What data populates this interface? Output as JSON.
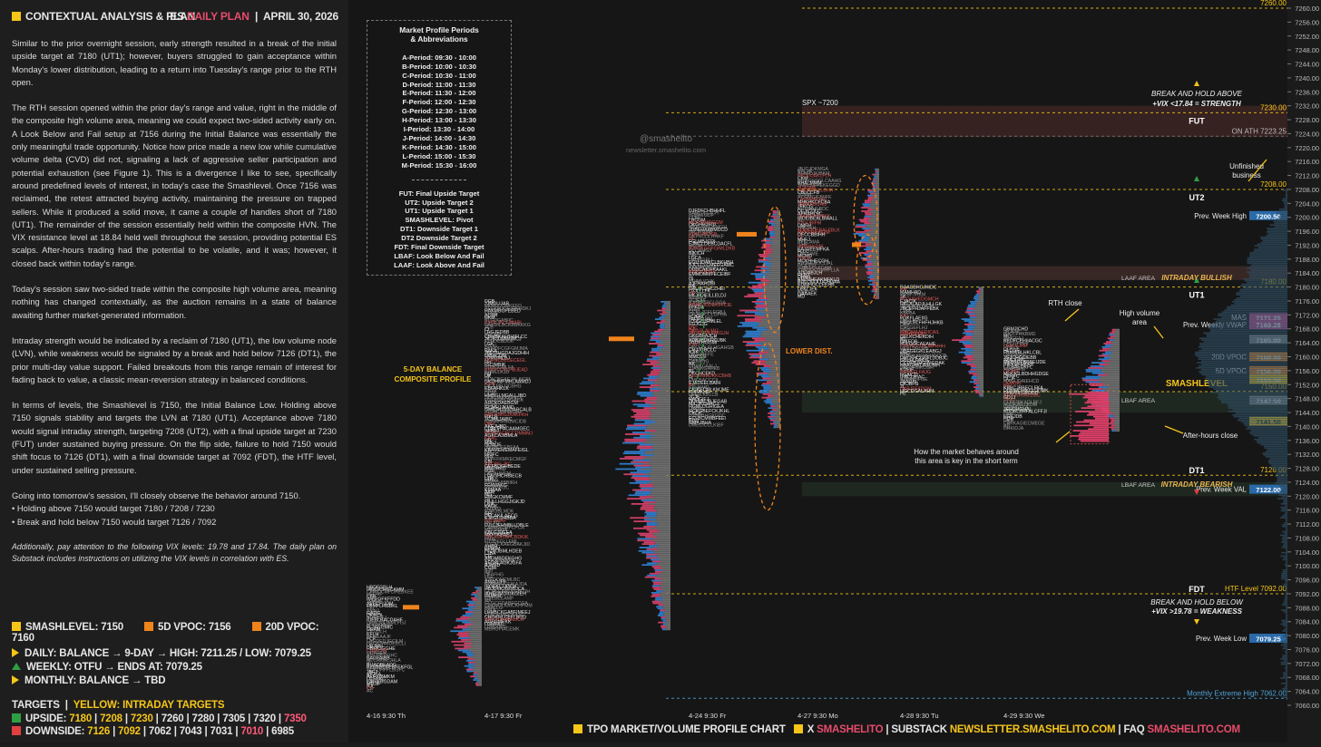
{
  "header": {
    "title": "CONTEXTUAL ANALYSIS & PLAN",
    "symbol": "ES",
    "plan_label": "DAILY PLAN",
    "date": "APRIL 30, 2026"
  },
  "plan_paragraphs": [
    "Similar to the prior overnight session, early strength resulted in a break of the initial upside target at 7180 (UT1); however, buyers struggled to gain acceptance within Monday's lower distribution, leading to a return into Tuesday's range prior to the RTH open.",
    "The RTH session opened within the prior day's range and value, right in the middle of the composite high volume area, meaning we could expect two-sided activity early on. A Look Below and Fail setup at 7156 during the Initial Balance was essentially the only meaningful trade opportunity. Notice how price made a new low while cumulative volume delta (CVD) did not, signaling a lack of aggressive seller participation and potential exhaustion (see Figure 1). This is a divergence I like to see, specifically around predefined levels of interest, in today's case the Smashlevel. Once 7156 was reclaimed, the retest attracted buying activity, maintaining the pressure on trapped sellers. While it produced a solid move, it came a couple of handles short of 7180 (UT1). The remainder of the session essentially held within the composite HVN. The VIX resistance level at 18.84 held well throughout the session, providing potential ES scalps. After-hours trading had the potential to be volatile, and it was; however, it closed back within today's range.",
    "Today's session saw two-sided trade within the composite high volume area, meaning nothing has changed contextually, as the auction remains in a state of balance awaiting further market-generated information.",
    "Intraday strength would be indicated by a reclaim of 7180 (UT1), the low volume node (LVN), while weakness would be signaled by a break and hold below 7126 (DT1), the prior multi-day value support. Failed breakouts from this range remain of interest for fading back to value, a classic mean-reversion strategy in balanced conditions.",
    "In terms of levels, the Smashlevel is 7150, the Initial Balance Low. Holding above 7150 signals stability and targets the LVN at 7180 (UT1). Acceptance above 7180 would signal intraday strength, targeting 7208 (UT2), with a final upside target at 7230 (FUT) under sustained buying pressure. On the flip side, failure to hold 7150 would shift focus to 7126 (DT1), with a final downside target at 7092 (FDT), the HTF level, under sustained selling pressure.",
    "Going into tomorrow's session, I'll closely observe the behavior around 7150.",
    "• Holding above 7150 would target 7180 / 7208 / 7230",
    "• Break and hold below 7150 would target 7126 / 7092",
    "Additionally, pay attention to the following VIX levels: 19.78 and 17.84. The daily plan on Substack includes instructions on utilizing the VIX levels in correlation with ES."
  ],
  "key_levels": {
    "smashlevel": "SMASHLEVEL: 7150",
    "vpoc5": "5D VPOC: 7156",
    "vpoc20": "20D VPOC: 7160"
  },
  "bias": {
    "daily": "DAILY: BALANCE → 9-DAY → HIGH: 7211.25 / LOW: 7079.25",
    "weekly": "WEEKLY: OTFU → ENDS AT: 7079.25",
    "monthly": "MONTHLY: BALANCE → TBD"
  },
  "targets": {
    "title": "TARGETS",
    "subtitle": "YELLOW: INTRADAY TARGETS",
    "upside_label": "UPSIDE:",
    "upside": [
      "7180",
      "7208",
      "7230",
      "7260",
      "7280",
      "7305",
      "7320",
      "7350"
    ],
    "downside_label": "DOWNSIDE:",
    "downside": [
      "7126",
      "7092",
      "7062",
      "7043",
      "7031",
      "7010",
      "6985"
    ]
  },
  "legend_box": {
    "title_1": "Market Profile Periods",
    "title_2": "& Abbreviations",
    "periods": [
      "A-Period: 09:30 - 10:00",
      "B-Period: 10:00 - 10:30",
      "C-Period: 10:30 - 11:00",
      "D-Period: 11:00 - 11:30",
      "E-Period: 11:30 - 12:00",
      "F-Period: 12:00 - 12:30",
      "G-Period: 12:30 - 13:00",
      "H-Period: 13:00 - 13:30",
      "I-Period: 13:30 - 14:00",
      "J-Period: 14:00 - 14:30",
      "K-Period: 14:30 - 15:00",
      "L-Period: 15:00 - 15:30",
      "M-Period: 15:30 - 16:00"
    ],
    "abbrevs": [
      "FUT: Final Upside Target",
      "UT2: Upside Target 2",
      "UT1: Upside Target 1",
      "SMASHLEVEL: Pivot",
      "DT1: Downside Target 1",
      "DT2 Downside Target 2",
      "FDT: Final Downside Target",
      "LBAF: Look Below And Fail",
      "LAAF: Look Above And Fail"
    ]
  },
  "watermark": {
    "handle": "@smashelito",
    "site": "newsletter.smashelito.com"
  },
  "footer": {
    "chart_label": "TPO MARKET/VOLUME PROFILE CHART",
    "x_label": "X",
    "x_handle": "SMASHELITO",
    "substack_label": "SUBSTACK",
    "substack_url": "NEWSLETTER.SMASHELITO.COM",
    "faq_label": "FAQ",
    "faq_handle": "SMASHELITO.COM"
  },
  "colors": {
    "accent_yellow": "#f5c518",
    "accent_red": "#e74c6b",
    "orange": "#f0841c",
    "green": "#2ea043",
    "blue_profile": "#2f7fd0",
    "pink_profile": "#d7416a"
  },
  "chart_data": {
    "type": "table",
    "subtype": "tpo-market-volume-profile",
    "symbol": "ES",
    "y_axis": {
      "min": 7060.0,
      "max": 7260.0,
      "step": 4.0
    },
    "x_labels": [
      "4-16  9:30 Th",
      "4-17  9:30 Fr",
      "4-24  9:30 Fr",
      "4-27  9:30 Mo",
      "4-28  9:30 Tu",
      "4-29  9:30 We"
    ],
    "levels": [
      {
        "name": "FUT",
        "price": 7230.0,
        "tag": "7230.00"
      },
      {
        "name": "UT2",
        "price": 7208.0,
        "tag": "7208.00"
      },
      {
        "name": "UT1",
        "price": 7180.0,
        "tag": "7180.00"
      },
      {
        "name": "SMASHLEVEL",
        "price": 7150.0,
        "tag": "7150.00"
      },
      {
        "name": "DT1",
        "price": 7126.0,
        "tag": "7126.00"
      },
      {
        "name": "FDT",
        "price": 7092.0,
        "tag": "HTF Level  7092.00"
      },
      {
        "name": "ON ATH",
        "price": 7223.25,
        "tag": "ON ATH  7223.25"
      },
      {
        "name": "Monthly Extreme High",
        "price": 7062.0,
        "tag": "Monthly Extreme High  7062.00"
      },
      {
        "name": "Top",
        "price": 7260.0,
        "tag": "7260.00"
      }
    ],
    "price_tags": [
      {
        "label": "Prev. Week High",
        "price": 7200.5,
        "value": "7200.50"
      },
      {
        "label": "MAS",
        "price": 7171.25,
        "value": "7171.25"
      },
      {
        "label": "Prev. Weekly VWAP",
        "price": 7169.25,
        "value": "7169.25"
      },
      {
        "label": "",
        "price": 7165.0,
        "value": "7165.00"
      },
      {
        "label": "20D VPOC",
        "price": 7160.0,
        "value": "7160.00"
      },
      {
        "label": "5D VPOC",
        "price": 7156.0,
        "value": "7156.00"
      },
      {
        "label": "",
        "price": 7153.5,
        "value": "7153.50"
      },
      {
        "label": "",
        "price": 7147.5,
        "value": "7147.50"
      },
      {
        "label": "",
        "price": 7141.5,
        "value": "7141.50"
      },
      {
        "label": "Prev. Week VAL",
        "price": 7122.0,
        "value": "7122.00"
      },
      {
        "label": "Prev. Week Low",
        "price": 7079.25,
        "value": "7079.25"
      }
    ],
    "annotations": [
      "SPX ~7200",
      "BREAK AND HOLD ABOVE",
      "+VIX <17.84 = STRENGTH",
      "Unfinished business",
      "LAAF AREA",
      "INTRADAY BULLISH",
      "RTH close",
      "High volume area",
      "LOWER DIST.",
      "5-DAY BALANCE",
      "COMPOSITE PROFILE",
      "LBAF AREA",
      "After-hours close",
      "How the market behaves around",
      "this area is key in the short term",
      "INTRADAY BEARISH",
      "BREAK AND HOLD BELOW",
      "+VIX >19.78 = WEAKNESS"
    ]
  }
}
